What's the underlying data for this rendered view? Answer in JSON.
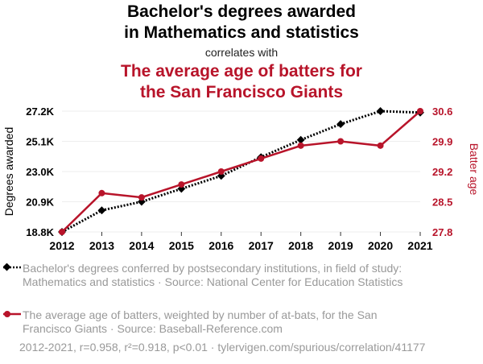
{
  "title": {
    "line1": "Bachelor's degrees awarded",
    "line2": "in Mathematics and statistics",
    "connector": "correlates with",
    "second_line1": "The average age of batters for",
    "second_line2": "the San Francisco Giants"
  },
  "colors": {
    "series1": "#000000",
    "series2": "#b8142a",
    "grid": "#eeeeee",
    "muted_text": "#999999"
  },
  "chart_data": {
    "type": "line",
    "x": [
      2012,
      2013,
      2014,
      2015,
      2016,
      2017,
      2018,
      2019,
      2020,
      2021
    ],
    "xlabel": "",
    "series": [
      {
        "name": "Bachelor's degrees conferred by postsecondary institutions, in field of study: Mathematics and statistics",
        "axis": "left",
        "style": "dotted",
        "marker": "diamond",
        "values": [
          18800,
          20300,
          20900,
          21800,
          22700,
          24000,
          25200,
          26300,
          27200,
          27100
        ]
      },
      {
        "name": "The average age of batters, weighted by number of at-bats, for the San Francisco Giants",
        "axis": "right",
        "style": "solid",
        "marker": "circle",
        "values": [
          27.8,
          28.7,
          28.6,
          28.9,
          29.2,
          29.5,
          29.8,
          29.9,
          29.8,
          30.6
        ]
      }
    ],
    "y_left": {
      "label": "Degrees awarded",
      "ticks": [
        18800,
        20900,
        23000,
        25100,
        27200
      ],
      "tick_labels": [
        "18.8K",
        "20.9K",
        "23.0K",
        "25.1K",
        "27.2K"
      ],
      "range": [
        18800,
        27200
      ]
    },
    "y_right": {
      "label": "Batter age",
      "ticks": [
        27.8,
        28.5,
        29.2,
        29.9,
        30.6
      ],
      "tick_labels": [
        "27.8",
        "28.5",
        "29.2",
        "29.9",
        "30.6"
      ],
      "range": [
        27.8,
        30.6
      ]
    },
    "grid": true,
    "legend_position": "bottom"
  },
  "legend": {
    "item1": "Bachelor's degrees conferred by postsecondary institutions, in field of study: Mathematics and statistics · Source: National Center for Education Statistics",
    "item2": "The average age of batters, weighted by number of at-bats, for the San Francisco Giants · Source: Baseball-Reference.com"
  },
  "footer": "2012-2021, r=0.958, r²=0.918, p<0.01 · tylervigen.com/spurious/correlation/41177"
}
